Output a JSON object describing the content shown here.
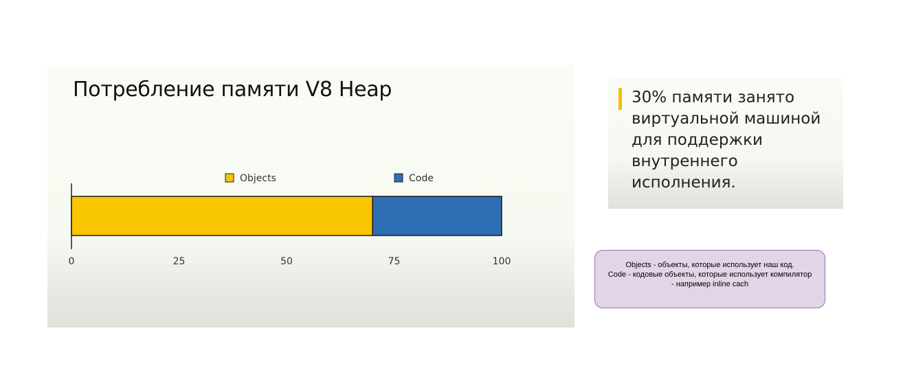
{
  "slide": {
    "title": "Потребление памяти V8 Heap"
  },
  "chart_data": {
    "type": "bar",
    "orientation": "horizontal",
    "stacked": true,
    "categories": [
      ""
    ],
    "series": [
      {
        "name": "Objects",
        "values": [
          70
        ],
        "color": "#f7c600"
      },
      {
        "name": "Code",
        "values": [
          30
        ],
        "color": "#2f6db5"
      }
    ],
    "xlim": [
      0,
      100
    ],
    "xticks": [
      "0",
      "25",
      "50",
      "75",
      "100"
    ],
    "legend_position": "top",
    "grid": false
  },
  "note": {
    "text": "30% памяти занято виртуальной машиной для поддержки внутреннего исполнения.",
    "accent_color": "#f5c000"
  },
  "comment": {
    "lines": [
      "Objects - объекты, которые использует наш код.",
      "Code - кодовые объекты, которые использует компилятор",
      "- например inline cach"
    ]
  }
}
